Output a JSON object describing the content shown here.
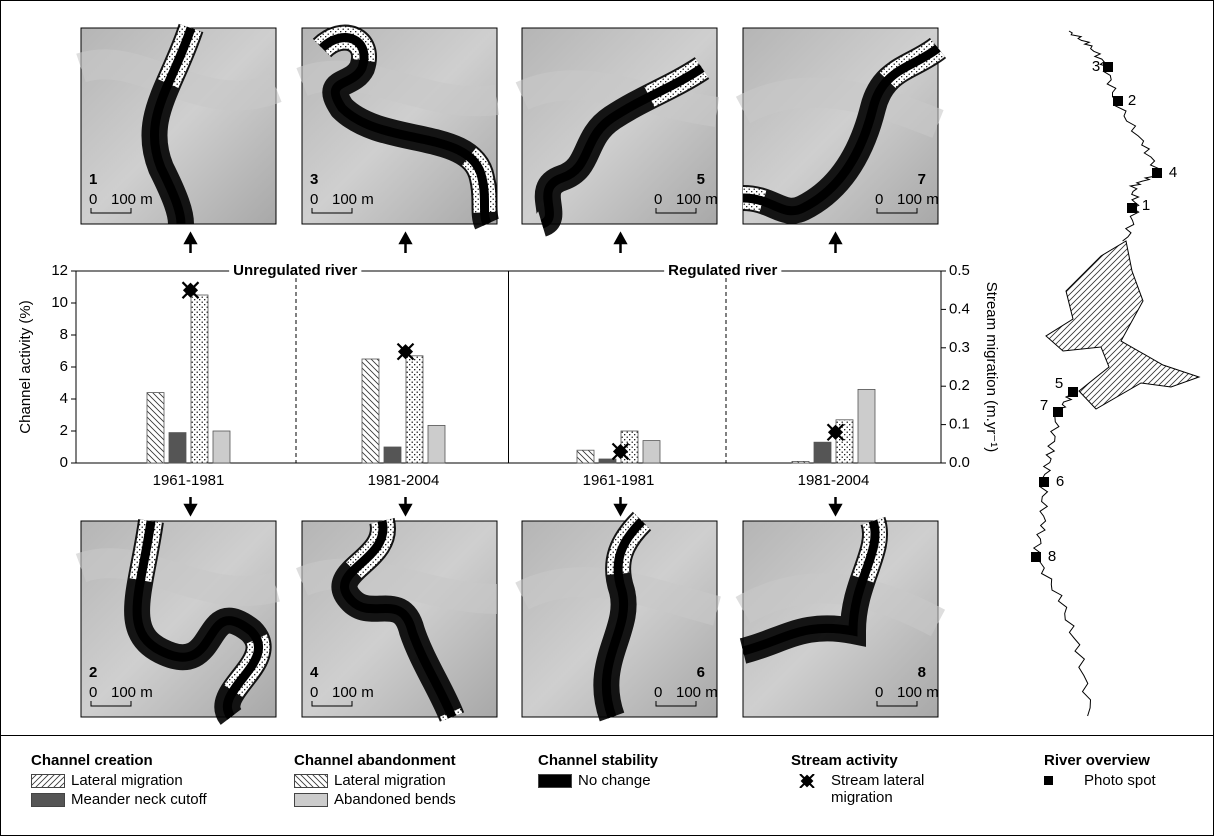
{
  "chart_data": {
    "type": "bar",
    "sections": [
      "Unregulated river",
      "Regulated river"
    ],
    "categories": [
      "1961-1981",
      "1981-2004",
      "1961-1981",
      "1981-2004"
    ],
    "ylabel": "Channel activity (%)",
    "y2label": "Stream migration (m.yr⁻¹)",
    "ylim": [
      0,
      12
    ],
    "yticks": [
      0,
      2,
      4,
      6,
      8,
      10,
      12
    ],
    "y2lim": [
      0,
      0.5
    ],
    "y2ticks": [
      {
        "value": 0,
        "label": "0.0"
      },
      0.1,
      0.2,
      0.3,
      0.4,
      0.5
    ],
    "series": [
      {
        "fill": "back-hatch",
        "values": [
          4.4,
          6.5,
          0.8,
          0.1
        ]
      },
      {
        "fill": "#555555",
        "values": [
          1.9,
          1.0,
          0.25,
          1.3
        ]
      },
      {
        "fill": "dots",
        "values": [
          10.5,
          6.7,
          2.0,
          2.7
        ]
      },
      {
        "fill": "#cccccc",
        "values": [
          2.0,
          2.35,
          1.4,
          4.6
        ]
      },
      {
        "type": "scatter",
        "marker": "x",
        "axis": "y2",
        "values": [
          0.45,
          0.29,
          0.03,
          0.08
        ]
      }
    ]
  },
  "photos": [
    {
      "number": "1",
      "scale_start": "0",
      "scale_label": "100 m"
    },
    {
      "number": "2",
      "scale_start": "0",
      "scale_label": "100 m"
    },
    {
      "number": "3",
      "scale_start": "0",
      "scale_label": "100 m"
    },
    {
      "number": "4",
      "scale_start": "0",
      "scale_label": "100 m"
    },
    {
      "number": "5",
      "scale_start": "0",
      "scale_label": "100 m"
    },
    {
      "number": "6",
      "scale_start": "0",
      "scale_label": "100 m"
    },
    {
      "number": "7",
      "scale_start": "0",
      "scale_label": "100 m"
    },
    {
      "number": "8",
      "scale_start": "0",
      "scale_label": "100 m"
    }
  ],
  "map": {
    "spots": [
      "3",
      "2",
      "4",
      "1",
      "5",
      "7",
      "6",
      "8"
    ]
  },
  "legend": {
    "groups": [
      {
        "title": "Channel creation",
        "entries": [
          {
            "label": "Lateral migration",
            "swatch": "forward-hatch"
          },
          {
            "label": "Meander neck cutoff",
            "swatch": "#555555"
          }
        ]
      },
      {
        "title": "Channel abandonment",
        "entries": [
          {
            "label": "Lateral migration",
            "swatch": "back-hatch"
          },
          {
            "label": "Abandoned bends",
            "swatch": "#cccccc"
          }
        ]
      },
      {
        "title": "Channel stability",
        "entries": [
          {
            "label": "No change",
            "swatch": "#000000"
          }
        ]
      },
      {
        "title": "Stream activity",
        "entries": [
          {
            "label": "Stream lateral migration",
            "swatch": "x"
          }
        ]
      },
      {
        "title": "River overview",
        "entries": [
          {
            "label": "Photo spot",
            "swatch": "square"
          }
        ]
      }
    ]
  }
}
